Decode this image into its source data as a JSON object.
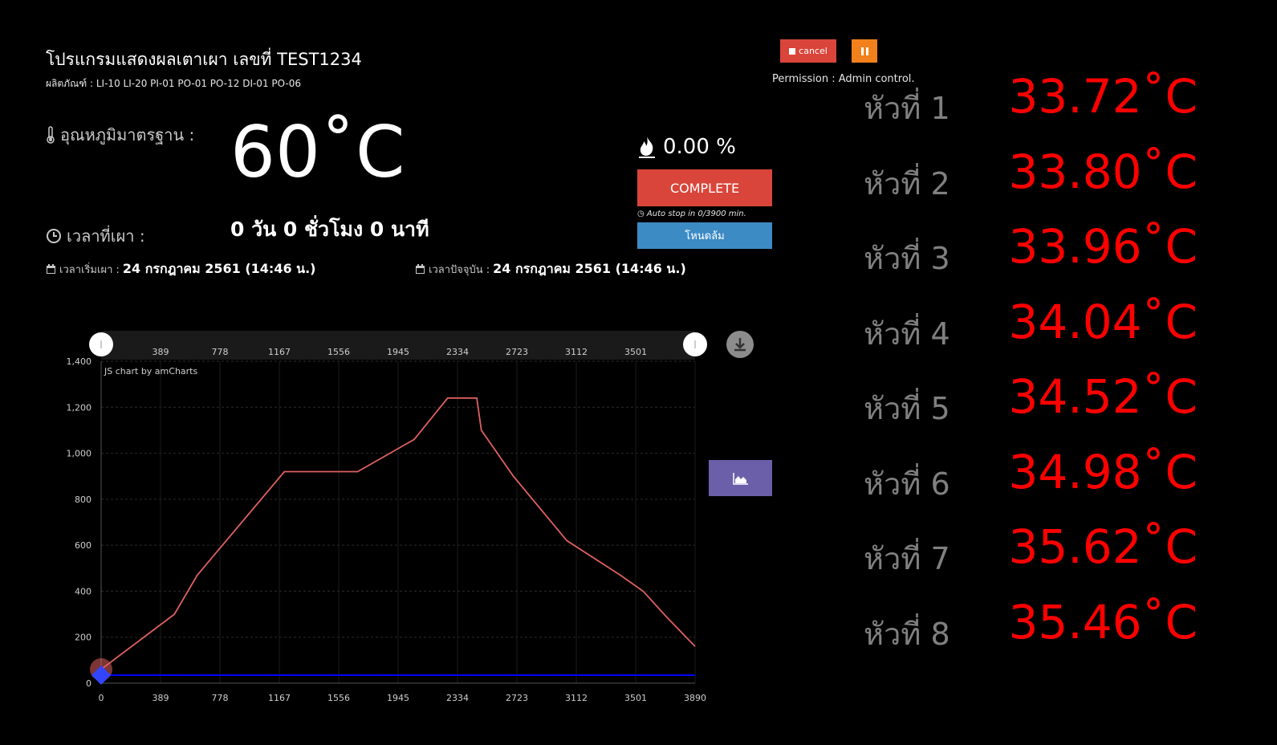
{
  "header": {
    "title": "โปรแกรมแสดงผลเตาเผา เลขที่ TEST1234",
    "products_label": "ผลิตภัณฑ์ :",
    "products": "LI-10 LI-20 PI-01 PO-01 PO-12 DI-01 PO-06"
  },
  "standard_temp": {
    "label": "อุณหภูมิมาตรฐาน :",
    "value": "60˚C",
    "icon": "thermometer-icon"
  },
  "firing_time": {
    "label": "เวลาที่เผา :",
    "value": "0 วัน 0 ชั่วโมง 0 นาที",
    "icon": "clock-icon"
  },
  "start_time": {
    "label": "เวลาเริ่มเผา :",
    "value": "24 กรกฎาคม 2561 (14:46 น.)",
    "icon": "calendar-icon"
  },
  "current_time": {
    "label": "เวลาปัจจุบัน :",
    "value": "24 กรกฎาคม 2561 (14:46 น.)",
    "icon": "calendar-icon"
  },
  "controls": {
    "cancel_label": "cancel",
    "permission": "Permission : Admin control.",
    "percent": "0.00 %",
    "complete_label": "COMPLETE",
    "autostop": "Auto stop in 0/3900 min.",
    "mode_label": "โหนดล้ม"
  },
  "heads": [
    {
      "label": "หัวที่ 1",
      "value": "33.72˚C"
    },
    {
      "label": "หัวที่ 2",
      "value": "33.80˚C"
    },
    {
      "label": "หัวที่ 3",
      "value": "33.96˚C"
    },
    {
      "label": "หัวที่ 4",
      "value": "34.04˚C"
    },
    {
      "label": "หัวที่ 5",
      "value": "34.52˚C"
    },
    {
      "label": "หัวที่ 6",
      "value": "34.98˚C"
    },
    {
      "label": "หัวที่ 7",
      "value": "35.62˚C"
    },
    {
      "label": "หัวที่ 8",
      "value": "35.46˚C"
    }
  ],
  "colors": {
    "accent_red": "#d9453a",
    "pause_orange": "#f2811d",
    "mode_blue": "#3d8bc4",
    "chart_button": "#6a5fa8",
    "head_value": "#ff0000",
    "setpoint_line": "#e06060",
    "actual_line": "#0000ff"
  },
  "chart_data": {
    "type": "line",
    "credit": "JS chart by amCharts",
    "xlim": [
      0,
      3890
    ],
    "ylim": [
      0,
      1400
    ],
    "x_ticks": [
      0,
      389,
      778,
      1167,
      1556,
      1945,
      2334,
      2723,
      3112,
      3501,
      3890
    ],
    "y_ticks": [
      0,
      200,
      400,
      600,
      800,
      1000,
      1200,
      1400
    ],
    "y_tick_labels": [
      "0",
      "200",
      "400",
      "600",
      "800",
      "1,000",
      "1,200",
      "1,400"
    ],
    "scroll_ticks": [
      389,
      778,
      1167,
      1556,
      1945,
      2334,
      2723,
      3112,
      3501
    ],
    "grid": true,
    "series": [
      {
        "color": "#e06060",
        "x": [
          0,
          480,
          630,
          1200,
          1680,
          2050,
          2270,
          2460,
          2490,
          2700,
          3050,
          3400,
          3550,
          3700,
          3890
        ],
        "y": [
          60,
          300,
          470,
          920,
          920,
          1060,
          1240,
          1240,
          1100,
          900,
          620,
          470,
          400,
          290,
          160
        ]
      },
      {
        "color": "#0000ff",
        "x": [
          0,
          3890
        ],
        "y": [
          35,
          35
        ]
      }
    ]
  }
}
